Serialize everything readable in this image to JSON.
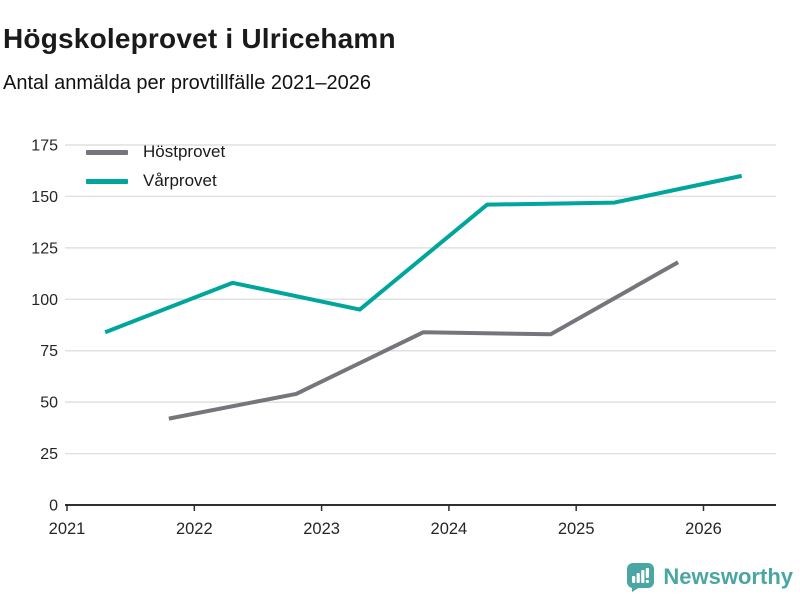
{
  "title": "Högskoleprovet i Ulricehamn",
  "subtitle": "Antal anmälda per provtillfälle 2021–2026",
  "colors": {
    "host_line": "#76757c",
    "var_line": "#00a59b",
    "grid": "#e1e1e1",
    "axis": "#2f2f2f",
    "tick_label": "#262626",
    "brand": "#4aa6a3"
  },
  "chart_data": {
    "type": "line",
    "title": "Högskoleprovet i Ulricehamn",
    "subtitle": "Antal anmälda per provtillfälle 2021–2026",
    "xlabel": "",
    "ylabel": "",
    "xlim": [
      2021,
      2026.6
    ],
    "ylim": [
      0,
      175
    ],
    "x_ticks": [
      2021,
      2022,
      2023,
      2024,
      2025,
      2026
    ],
    "y_ticks": [
      0,
      25,
      50,
      75,
      100,
      125,
      150,
      175
    ],
    "grid": "horizontal",
    "legend_position": "top-left",
    "series": [
      {
        "name": "Höstprovet",
        "color": "#76757c",
        "x": [
          2021.8,
          2022.8,
          2023.8,
          2024.8,
          2025.8
        ],
        "values": [
          42,
          54,
          84,
          83,
          118
        ]
      },
      {
        "name": "Vårprovet",
        "color": "#00a59b",
        "x": [
          2021.3,
          2022.3,
          2023.3,
          2024.3,
          2025.3,
          2026.3
        ],
        "values": [
          84,
          108,
          95,
          146,
          147,
          160
        ]
      }
    ]
  },
  "footer": {
    "brand": "Newsworthy",
    "logo_icon": "bar-chart-speech-bubble-icon"
  }
}
